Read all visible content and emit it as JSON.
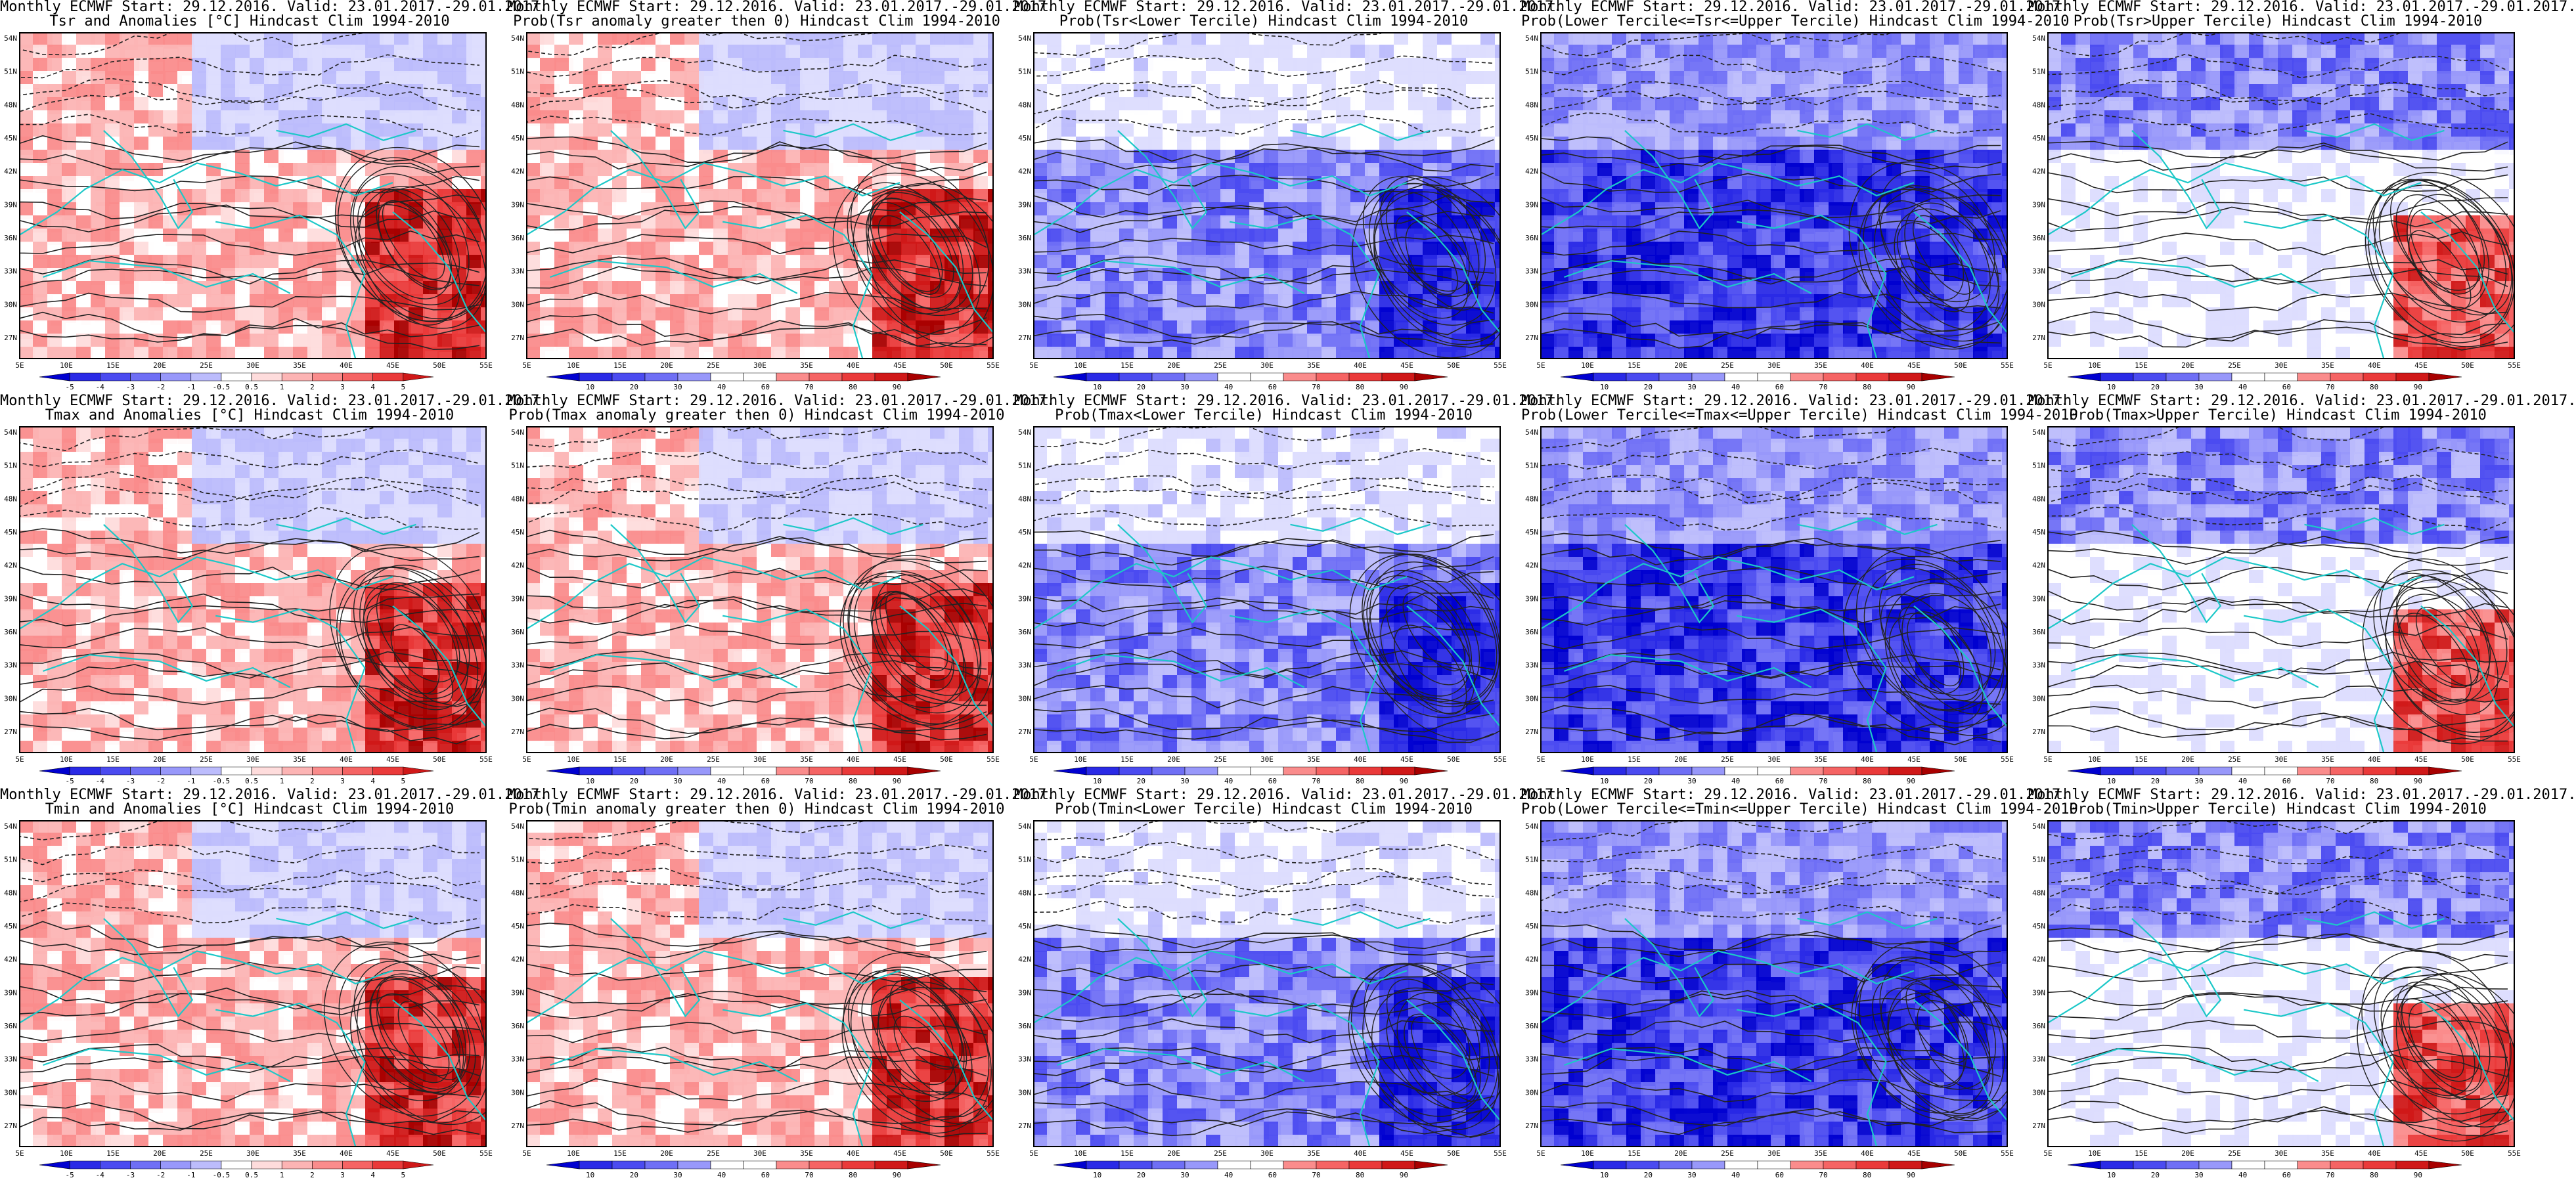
{
  "lat_labels": [
    "54N",
    "51N",
    "48N",
    "45N",
    "42N",
    "39N",
    "36N",
    "33N",
    "30N",
    "27N"
  ],
  "lon_labels": [
    "5E",
    "10E",
    "15E",
    "20E",
    "25E",
    "30E",
    "35E",
    "40E",
    "45E",
    "50E",
    "55E"
  ],
  "anomaly_scale": [
    "-5",
    "-4",
    "-3",
    "-2",
    "-1",
    "-0.5",
    "0.5",
    "1",
    "2",
    "3",
    "4",
    "5"
  ],
  "prob_scale": [
    "10",
    "20",
    "30",
    "40",
    "60",
    "70",
    "80",
    "90"
  ],
  "palette": {
    "blues": [
      "#0000d0",
      "#2a2ae6",
      "#4b4bf0",
      "#6f6ff5",
      "#9898fa",
      "#bcbcfc",
      "#dcdcfe"
    ],
    "reds": [
      "#fedcdc",
      "#fcb4b4",
      "#fa8c8c",
      "#f56464",
      "#ea3a3a",
      "#d01818",
      "#a80000"
    ],
    "coast": "#1cc8c8",
    "contour": "#222222"
  },
  "panels": [
    {
      "title1": "Monthly ECMWF Start: 29.12.2016. Valid: 23.01.2017.-29.01.2017.",
      "title2": "Tsr and Anomalies [°C] Hindcast Clim 1994-2010",
      "kind": "anom",
      "trend": "warm"
    },
    {
      "title1": "Monthly ECMWF Start: 29.12.2016. Valid: 23.01.2017.-29.01.2017.",
      "title2": "Prob(Tsr anomaly greater then 0) Hindcast Clim 1994-2010",
      "kind": "prob",
      "trend": "warm"
    },
    {
      "title1": "Monthly ECMWF Start: 29.12.2016. Valid: 23.01.2017.-29.01.2017.",
      "title2": "Prob(Tsr<Lower Tercile) Hindcast Clim 1994-2010",
      "kind": "prob",
      "trend": "cold"
    },
    {
      "title1": "Monthly ECMWF Start: 29.12.2016. Valid: 23.01.2017.-29.01.2017.",
      "title2": "Prob(Lower Tercile<=Tsr<=Upper Tercile) Hindcast Clim 1994-2010",
      "kind": "prob",
      "trend": "deep"
    },
    {
      "title1": "Monthly ECMWF Start: 29.12.2016. Valid: 23.01.2017.-29.01.2017.",
      "title2": "Prob(Tsr>Upper Tercile) Hindcast Clim 1994-2010",
      "kind": "prob",
      "trend": "mixed"
    },
    {
      "title1": "Monthly ECMWF Start: 29.12.2016. Valid: 23.01.2017.-29.01.2017.",
      "title2": "Tmax and Anomalies [°C] Hindcast Clim 1994-2010",
      "kind": "anom",
      "trend": "warm"
    },
    {
      "title1": "Monthly ECMWF Start: 29.12.2016. Valid: 23.01.2017.-29.01.2017.",
      "title2": "Prob(Tmax anomaly greater then 0) Hindcast Clim 1994-2010",
      "kind": "prob",
      "trend": "warm"
    },
    {
      "title1": "Monthly ECMWF Start: 29.12.2016. Valid: 23.01.2017.-29.01.2017.",
      "title2": "Prob(Tmax<Lower Tercile) Hindcast Clim 1994-2010",
      "kind": "prob",
      "trend": "cold"
    },
    {
      "title1": "Monthly ECMWF Start: 29.12.2016. Valid: 23.01.2017.-29.01.2017.",
      "title2": "Prob(Lower Tercile<=Tmax<=Upper Tercile) Hindcast Clim 1994-2010",
      "kind": "prob",
      "trend": "deep"
    },
    {
      "title1": "Monthly ECMWF Start: 29.12.2016. Valid: 23.01.2017.-29.01.2017.",
      "title2": "Prob(Tmax>Upper Tercile) Hindcast Clim 1994-2010",
      "kind": "prob",
      "trend": "mixed"
    },
    {
      "title1": "Monthly ECMWF Start: 29.12.2016. Valid: 23.01.2017.-29.01.2017.",
      "title2": "Tmin and Anomalies [°C] Hindcast Clim 1994-2010",
      "kind": "anom",
      "trend": "warm"
    },
    {
      "title1": "Monthly ECMWF Start: 29.12.2016. Valid: 23.01.2017.-29.01.2017.",
      "title2": "Prob(Tmin anomaly greater then 0) Hindcast Clim 1994-2010",
      "kind": "prob",
      "trend": "warm"
    },
    {
      "title1": "Monthly ECMWF Start: 29.12.2016. Valid: 23.01.2017.-29.01.2017.",
      "title2": "Prob(Tmin<Lower Tercile) Hindcast Clim 1994-2010",
      "kind": "prob",
      "trend": "cold"
    },
    {
      "title1": "Monthly ECMWF Start: 29.12.2016. Valid: 23.01.2017.-29.01.2017.",
      "title2": "Prob(Lower Tercile<=Tmin<=Upper Tercile) Hindcast Clim 1994-2010",
      "kind": "prob",
      "trend": "deep"
    },
    {
      "title1": "Monthly ECMWF Start: 29.12.2016. Valid: 23.01.2017.-29.01.2017.",
      "title2": "Prob(Tmin>Upper Tercile) Hindcast Clim 1994-2010",
      "kind": "prob",
      "trend": "mixed"
    }
  ]
}
